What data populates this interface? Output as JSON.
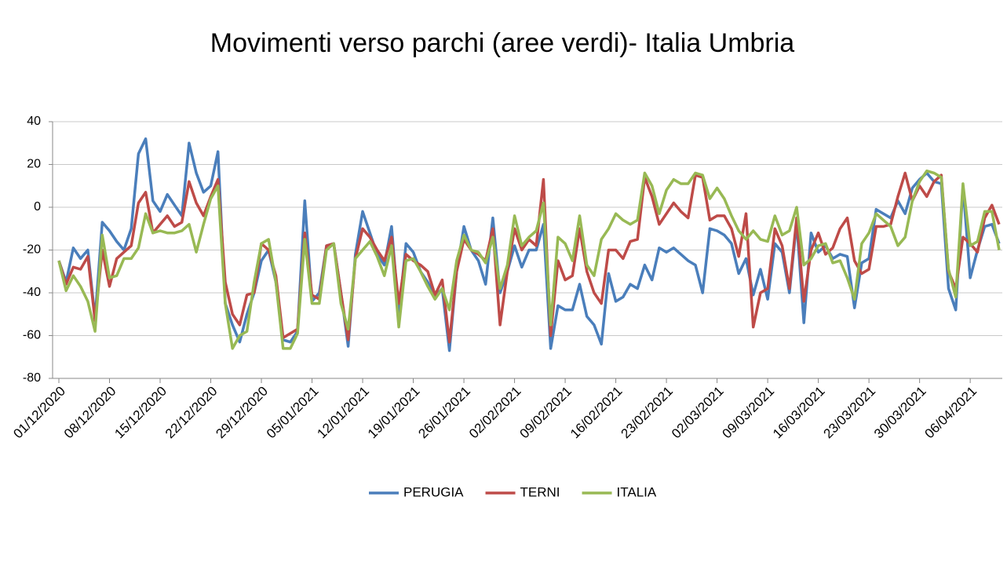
{
  "chart_data": {
    "type": "line",
    "title": "Movimenti verso parchi (aree verdi)- Italia Umbria",
    "categories": [
      "01/12/2020",
      null,
      null,
      null,
      null,
      null,
      null,
      "08/12/2020",
      null,
      null,
      null,
      null,
      null,
      null,
      "15/12/2020",
      null,
      null,
      null,
      null,
      null,
      null,
      "22/12/2020",
      null,
      null,
      null,
      null,
      null,
      null,
      "29/12/2020",
      null,
      null,
      null,
      null,
      null,
      null,
      "05/01/2021",
      null,
      null,
      null,
      null,
      null,
      null,
      "12/01/2021",
      null,
      null,
      null,
      null,
      null,
      null,
      "19/01/2021",
      null,
      null,
      null,
      null,
      null,
      null,
      "26/01/2021",
      null,
      null,
      null,
      null,
      null,
      null,
      "02/02/2021",
      null,
      null,
      null,
      null,
      null,
      null,
      "09/02/2021",
      null,
      null,
      null,
      null,
      null,
      null,
      "16/02/2021",
      null,
      null,
      null,
      null,
      null,
      null,
      "23/02/2021",
      null,
      null,
      null,
      null,
      null,
      null,
      "02/03/2021",
      null,
      null,
      null,
      null,
      null,
      null,
      "09/03/2021",
      null,
      null,
      null,
      null,
      null,
      null,
      "16/03/2021",
      null,
      null,
      null,
      null,
      null,
      null,
      "23/03/2021",
      null,
      null,
      null,
      null,
      null,
      null,
      "30/03/2021",
      null,
      null,
      null,
      null,
      null,
      null,
      "06/04/2021",
      null,
      null,
      null,
      null
    ],
    "series": [
      {
        "name": "PERUGIA",
        "color": "#4a7ebb",
        "values": [
          -25,
          -35,
          -19,
          -24,
          -20,
          -52,
          -7,
          -11,
          -16,
          -20,
          -10,
          25,
          32,
          3,
          -2,
          6,
          1,
          -4,
          30,
          16,
          7,
          10,
          26,
          -45,
          -55,
          -63,
          -50,
          -40,
          -25,
          -20,
          -35,
          -62,
          -63,
          -58,
          3,
          -44,
          -40,
          -18,
          -17,
          -40,
          -65,
          -22,
          -2,
          -12,
          -22,
          -27,
          -9,
          -50,
          -17,
          -21,
          -30,
          -35,
          -42,
          -38,
          -67,
          -30,
          -9,
          -20,
          -25,
          -36,
          -5,
          -40,
          -30,
          -18,
          -28,
          -20,
          -20,
          -8,
          -66,
          -46,
          -48,
          -48,
          -36,
          -51,
          -55,
          -64,
          -31,
          -44,
          -42,
          -36,
          -38,
          -27,
          -34,
          -19,
          -21,
          -19,
          -22,
          -25,
          -27,
          -40,
          -10,
          -11,
          -13,
          -17,
          -31,
          -24,
          -41,
          -29,
          -43,
          -17,
          -21,
          -40,
          -7,
          -54,
          -12,
          -21,
          -18,
          -24,
          -22,
          -23,
          -47,
          -26,
          -24,
          -1,
          -3,
          -5,
          3,
          -3,
          9,
          13,
          16,
          12,
          11,
          -38,
          -48,
          10,
          -33,
          -20,
          -9,
          -8,
          -17
        ]
      },
      {
        "name": "TERNI",
        "color": "#be4b48",
        "values": [
          -25,
          -36,
          -28,
          -29,
          -23,
          -53,
          -20,
          -37,
          -24,
          -21,
          -18,
          2,
          7,
          -12,
          -8,
          -4,
          -9,
          -7,
          12,
          2,
          -4,
          5,
          13,
          -35,
          -50,
          -55,
          -41,
          -40,
          -17,
          -20,
          -32,
          -61,
          -59,
          -57,
          -12,
          -41,
          -43,
          -18,
          -17,
          -40,
          -62,
          -24,
          -10,
          -14,
          -20,
          -25,
          -14,
          -45,
          -22,
          -25,
          -27,
          -30,
          -41,
          -34,
          -63,
          -30,
          -15,
          -20,
          -22,
          -25,
          -10,
          -55,
          -30,
          -10,
          -20,
          -15,
          -18,
          13,
          -60,
          -25,
          -34,
          -32,
          -10,
          -30,
          -40,
          -45,
          -20,
          -20,
          -24,
          -16,
          -15,
          14,
          5,
          -8,
          -3,
          2,
          -2,
          -5,
          15,
          14,
          -6,
          -4,
          -4,
          -10,
          -23,
          -3,
          -56,
          -40,
          -38,
          -10,
          -18,
          -38,
          -5,
          -44,
          -20,
          -12,
          -22,
          -19,
          -10,
          -5,
          -25,
          -31,
          -29,
          -9,
          -9,
          -8,
          5,
          16,
          3,
          10,
          5,
          12,
          15,
          -30,
          -38,
          -14,
          -17,
          -21,
          -5,
          1,
          -8
        ]
      },
      {
        "name": "ITALIA",
        "color": "#98b954",
        "values": [
          -25,
          -39,
          -32,
          -37,
          -44,
          -58,
          -13,
          -33,
          -32,
          -24,
          -24,
          -19,
          -3,
          -12,
          -11,
          -12,
          -12,
          -11,
          -8,
          -21,
          -8,
          4,
          10,
          -45,
          -66,
          -60,
          -58,
          -35,
          -17,
          -15,
          -35,
          -66,
          -66,
          -59,
          -15,
          -45,
          -45,
          -20,
          -17,
          -45,
          -57,
          -24,
          -20,
          -16,
          -23,
          -32,
          -18,
          -56,
          -25,
          -24,
          -30,
          -37,
          -43,
          -38,
          -48,
          -25,
          -13,
          -20,
          -21,
          -26,
          -14,
          -38,
          -27,
          -4,
          -18,
          -14,
          -11,
          2,
          -55,
          -14,
          -17,
          -25,
          -4,
          -27,
          -32,
          -15,
          -10,
          -3,
          -6,
          -8,
          -6,
          16,
          10,
          -3,
          8,
          13,
          11,
          11,
          16,
          15,
          4,
          9,
          4,
          -4,
          -11,
          -15,
          -11,
          -15,
          -16,
          -4,
          -13,
          -11,
          0,
          -27,
          -24,
          -18,
          -17,
          -26,
          -25,
          -33,
          -43,
          -17,
          -12,
          -3,
          -6,
          -9,
          -18,
          -14,
          3,
          12,
          17,
          16,
          14,
          -29,
          -42,
          11,
          -18,
          -16,
          -2,
          -2,
          -20
        ]
      }
    ],
    "ylim": [
      -80,
      40
    ],
    "yticks": [
      -80,
      -60,
      -40,
      -20,
      0,
      20,
      40
    ],
    "grid": true,
    "legend": "bottom"
  }
}
